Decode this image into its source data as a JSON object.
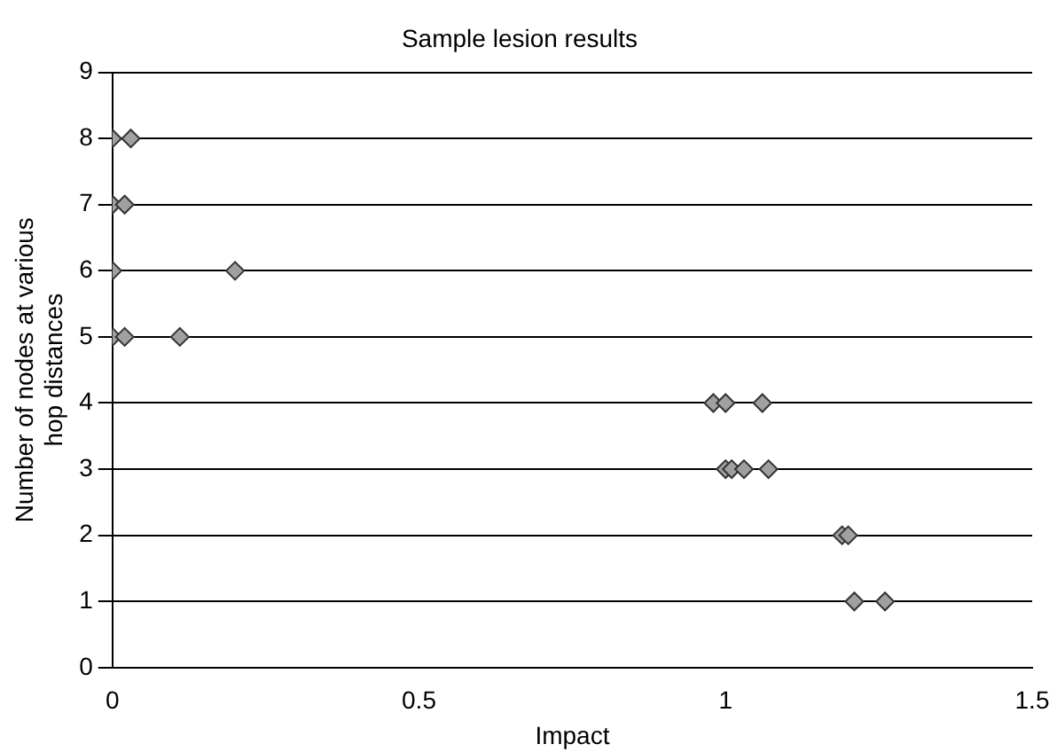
{
  "chart_data": {
    "type": "scatter",
    "title": "Sample lesion results",
    "xlabel": "Impact",
    "ylabel": "Number of nodes at various\nhop distances",
    "x": [
      0,
      0.03,
      0,
      0.02,
      0,
      0.2,
      0,
      0.02,
      0.11,
      0.98,
      1.0,
      1.06,
      1.0,
      1.01,
      1.03,
      1.07,
      1.19,
      1.2,
      1.21,
      1.26
    ],
    "values": [
      8,
      8,
      7,
      7,
      6,
      6,
      5,
      5,
      5,
      4,
      4,
      4,
      3,
      3,
      3,
      3,
      2,
      2,
      1,
      1
    ],
    "color": "#a0a0a0",
    "marker": "diamond",
    "grid": "y",
    "legend": false,
    "xlim": [
      0,
      1.5
    ],
    "xticks": [
      0,
      0.5,
      1,
      1.5
    ],
    "ylim": [
      0,
      9
    ],
    "yticks": [
      0,
      1,
      2,
      3,
      4,
      5,
      6,
      7,
      8,
      9
    ]
  }
}
